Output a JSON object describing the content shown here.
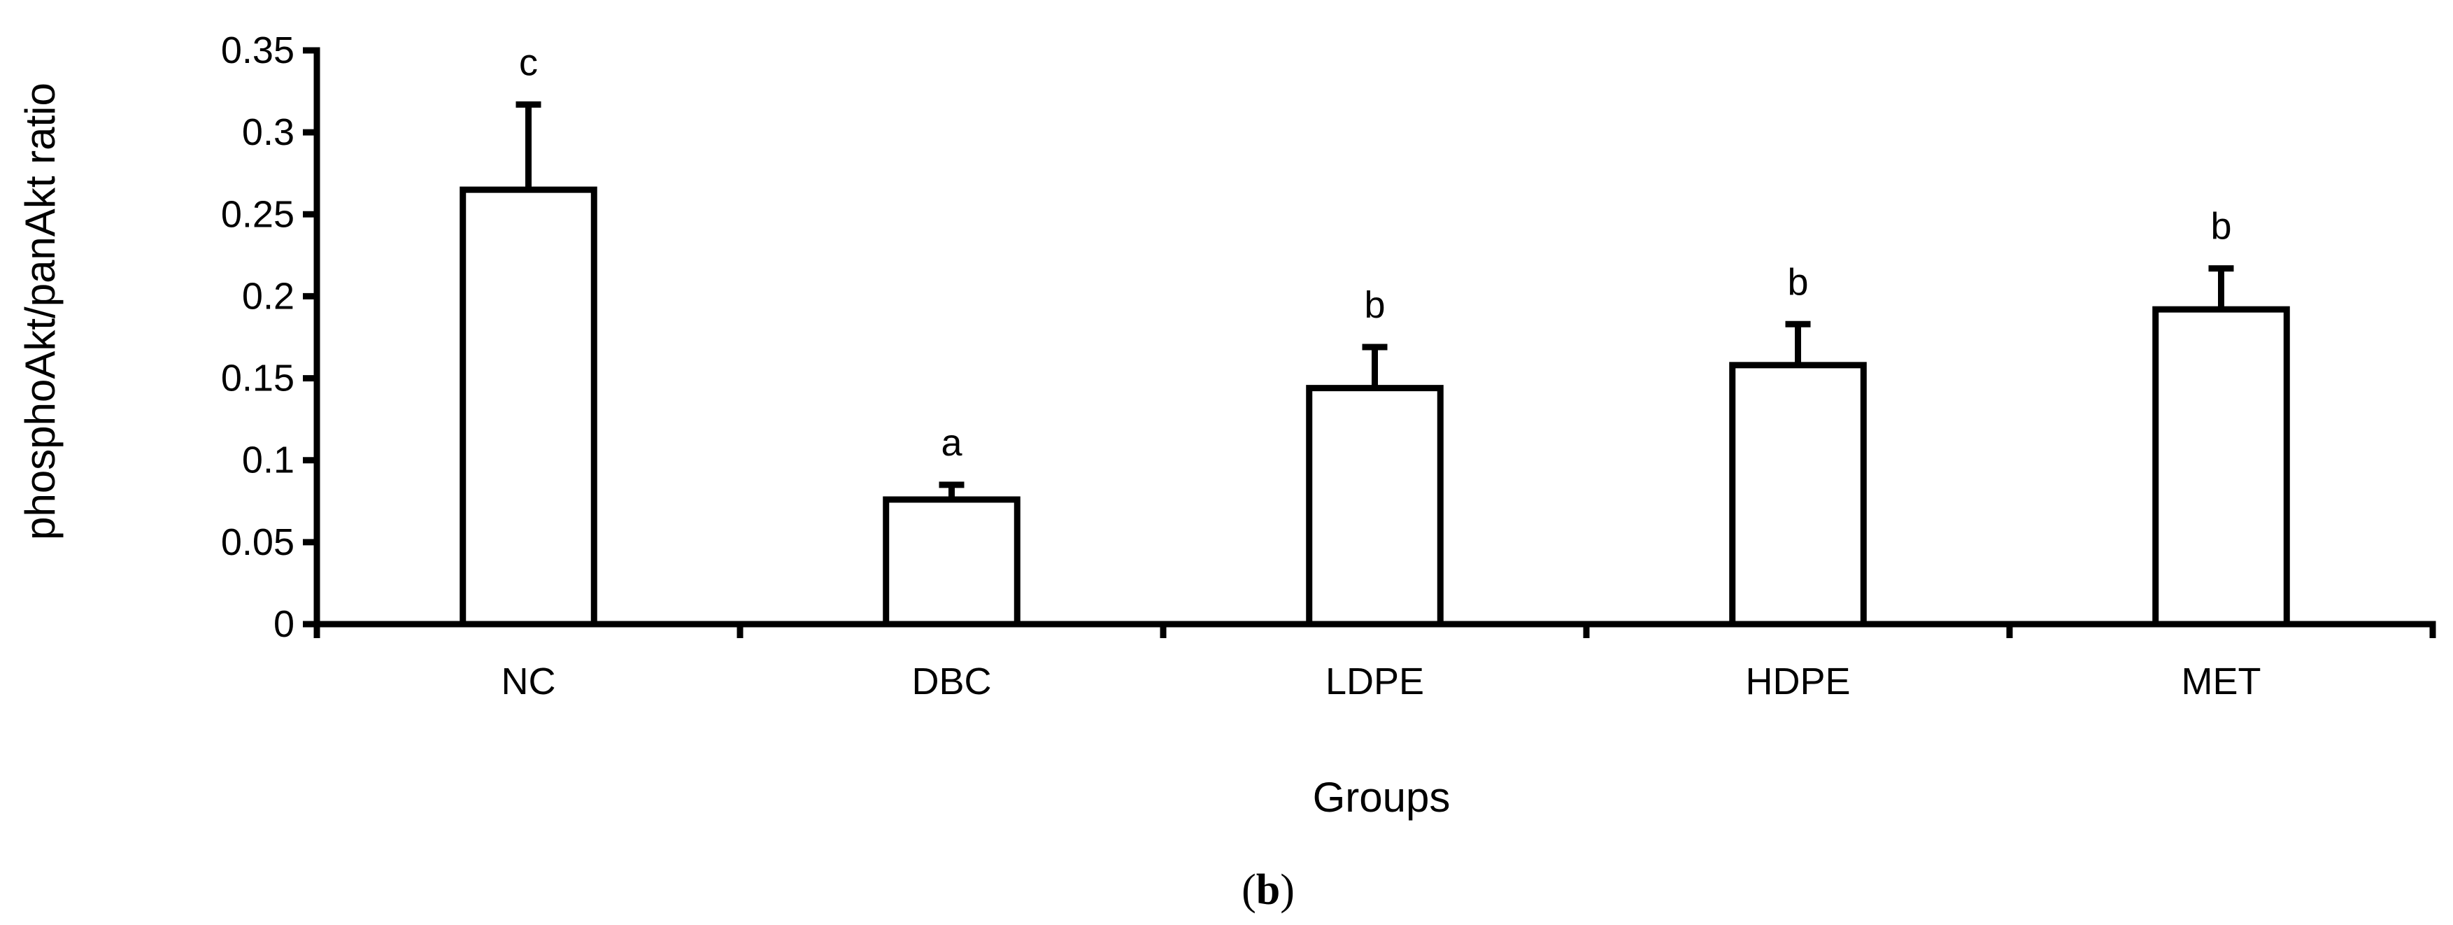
{
  "chart_data": {
    "type": "bar",
    "title": "",
    "xlabel": "Groups",
    "ylabel": "phosphoAkt/panAkt ratio",
    "categories": [
      "NC",
      "DBC",
      "LDPE",
      "HDPE",
      "MET"
    ],
    "series": [
      {
        "values": [
          0.265,
          0.076,
          0.144,
          0.158,
          0.192
        ],
        "error": [
          0.052,
          0.009,
          0.025,
          0.025,
          0.025
        ],
        "significance": [
          "c",
          "a",
          "b",
          "b",
          "b"
        ]
      }
    ],
    "ylim": [
      0,
      0.35
    ],
    "yticks": [
      {
        "value": 0,
        "label": "0"
      },
      {
        "value": 0.05,
        "label": "0.05"
      },
      {
        "value": 0.1,
        "label": "0.1"
      },
      {
        "value": 0.15,
        "label": "0.15"
      },
      {
        "value": 0.2,
        "label": "0.2"
      },
      {
        "value": 0.25,
        "label": "0.25"
      },
      {
        "value": 0.3,
        "label": "0.3"
      },
      {
        "value": 0.35,
        "label": "0.35"
      }
    ],
    "grid": false,
    "legend": "none",
    "bar_fill": "#ffffff",
    "bar_stroke": "#000000",
    "panel_label": {
      "open": "(",
      "letter": "b",
      "close": ")"
    }
  }
}
